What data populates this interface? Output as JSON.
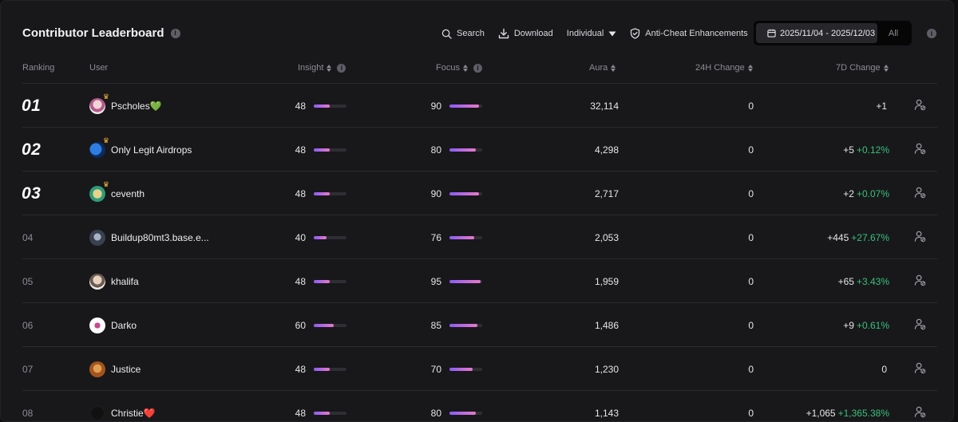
{
  "title": "Contributor Leaderboard",
  "toolbar": {
    "search_label": "Search",
    "download_label": "Download",
    "mode_label": "Individual",
    "anticheat_label": "Anti-Cheat Enhancements",
    "date_range": "2025/11/04 - 2025/12/03",
    "all_label": "All"
  },
  "columns": {
    "ranking": "Ranking",
    "user": "User",
    "insight": "Insight",
    "focus": "Focus",
    "aura": "Aura",
    "change_24h": "24H Change",
    "change_7d": "7D Change"
  },
  "colors": {
    "accent_from": "#8b5cf6",
    "accent_to": "#e879c9",
    "positive": "#39c07a"
  },
  "rows": [
    {
      "rank": "01",
      "user": "Pscholes💚",
      "insight": "48",
      "insight_pct": 0.48,
      "focus": "90",
      "focus_pct": 0.9,
      "aura": "32,114",
      "change_24h": "0",
      "change_7d": "+1",
      "change_7d_pct": ""
    },
    {
      "rank": "02",
      "user": "Only Legit Airdrops",
      "insight": "48",
      "insight_pct": 0.48,
      "focus": "80",
      "focus_pct": 0.8,
      "aura": "4,298",
      "change_24h": "0",
      "change_7d": "+5",
      "change_7d_pct": "+0.12%"
    },
    {
      "rank": "03",
      "user": "ceventh",
      "insight": "48",
      "insight_pct": 0.48,
      "focus": "90",
      "focus_pct": 0.9,
      "aura": "2,717",
      "change_24h": "0",
      "change_7d": "+2",
      "change_7d_pct": "+0.07%"
    },
    {
      "rank": "04",
      "user": "Buildup80mt3.base.e...",
      "insight": "40",
      "insight_pct": 0.4,
      "focus": "76",
      "focus_pct": 0.76,
      "aura": "2,053",
      "change_24h": "0",
      "change_7d": "+445",
      "change_7d_pct": "+27.67%"
    },
    {
      "rank": "05",
      "user": "khalifa",
      "insight": "48",
      "insight_pct": 0.48,
      "focus": "95",
      "focus_pct": 0.95,
      "aura": "1,959",
      "change_24h": "0",
      "change_7d": "+65",
      "change_7d_pct": "+3.43%"
    },
    {
      "rank": "06",
      "user": "Darko",
      "insight": "60",
      "insight_pct": 0.6,
      "focus": "85",
      "focus_pct": 0.85,
      "aura": "1,486",
      "change_24h": "0",
      "change_7d": "+9",
      "change_7d_pct": "+0.61%"
    },
    {
      "rank": "07",
      "user": "Justice",
      "insight": "48",
      "insight_pct": 0.48,
      "focus": "70",
      "focus_pct": 0.7,
      "aura": "1,230",
      "change_24h": "0",
      "change_7d": "0",
      "change_7d_pct": ""
    },
    {
      "rank": "08",
      "user": "Christie❤️",
      "insight": "48",
      "insight_pct": 0.48,
      "focus": "80",
      "focus_pct": 0.8,
      "aura": "1,143",
      "change_24h": "0",
      "change_7d": "+1,065",
      "change_7d_pct": "+1,365.38%"
    }
  ]
}
